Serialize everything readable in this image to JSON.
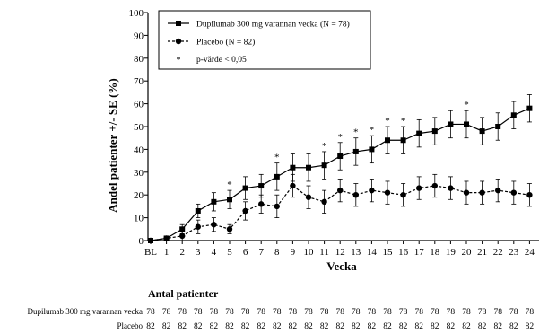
{
  "chart_data": {
    "type": "line",
    "xlabel": "Vecka",
    "ylabel": "Andel patienter +/- SE (%)",
    "x": [
      "BL",
      "1",
      "2",
      "3",
      "4",
      "5",
      "6",
      "7",
      "8",
      "9",
      "10",
      "11",
      "12",
      "13",
      "14",
      "15",
      "16",
      "17",
      "18",
      "19",
      "20",
      "21",
      "22",
      "23",
      "24"
    ],
    "yticks": [
      "0",
      "10",
      "20",
      "30",
      "40",
      "50",
      "60",
      "70",
      "80",
      "90",
      "100"
    ],
    "ylim": [
      0,
      100
    ],
    "legend_position": "top-left",
    "series": [
      {
        "name": "Dupilumab 300 mg varannan vecka (N = 78)",
        "marker": "square",
        "line_style": "solid",
        "values": [
          0,
          1,
          5,
          13,
          17,
          18,
          23,
          24,
          28,
          32,
          32,
          33,
          37,
          39,
          40,
          44,
          44,
          47,
          48,
          51,
          51,
          48,
          50,
          55,
          58
        ],
        "errors": [
          0,
          1,
          2,
          3,
          4,
          4,
          5,
          5,
          6,
          6,
          6,
          6,
          6,
          6,
          6,
          6,
          6,
          6,
          6,
          6,
          6,
          6,
          6,
          6,
          6
        ]
      },
      {
        "name": "Placebo (N = 82)",
        "marker": "circle",
        "line_style": "dashed",
        "values": [
          0,
          1,
          2,
          6,
          7,
          5,
          13,
          16,
          15,
          24,
          19,
          17,
          22,
          20,
          22,
          21,
          20,
          23,
          24,
          23,
          21,
          21,
          22,
          21,
          20
        ],
        "errors": [
          0,
          1,
          2,
          3,
          3,
          2,
          4,
          4,
          5,
          5,
          5,
          5,
          5,
          5,
          5,
          5,
          5,
          5,
          5,
          5,
          5,
          5,
          5,
          5,
          5
        ]
      }
    ],
    "significance_marker": "*",
    "significance_label": "p-värde < 0,05",
    "significant_x": [
      "5",
      "8",
      "11",
      "12",
      "13",
      "14",
      "15",
      "16",
      "20"
    ],
    "at_risk": {
      "title": "Antal patienter",
      "rows": [
        {
          "label": "Dupilumab 300 mg varannan vecka",
          "values": [
            "78",
            "78",
            "78",
            "78",
            "78",
            "78",
            "78",
            "78",
            "78",
            "78",
            "78",
            "78",
            "78",
            "78",
            "78",
            "78",
            "78",
            "78",
            "78",
            "78",
            "78",
            "78",
            "78",
            "78",
            "78"
          ]
        },
        {
          "label": "Placebo",
          "values": [
            "82",
            "82",
            "82",
            "82",
            "82",
            "82",
            "82",
            "82",
            "82",
            "82",
            "82",
            "82",
            "82",
            "82",
            "82",
            "82",
            "82",
            "82",
            "82",
            "82",
            "82",
            "82",
            "82",
            "82",
            "82"
          ]
        }
      ]
    }
  }
}
